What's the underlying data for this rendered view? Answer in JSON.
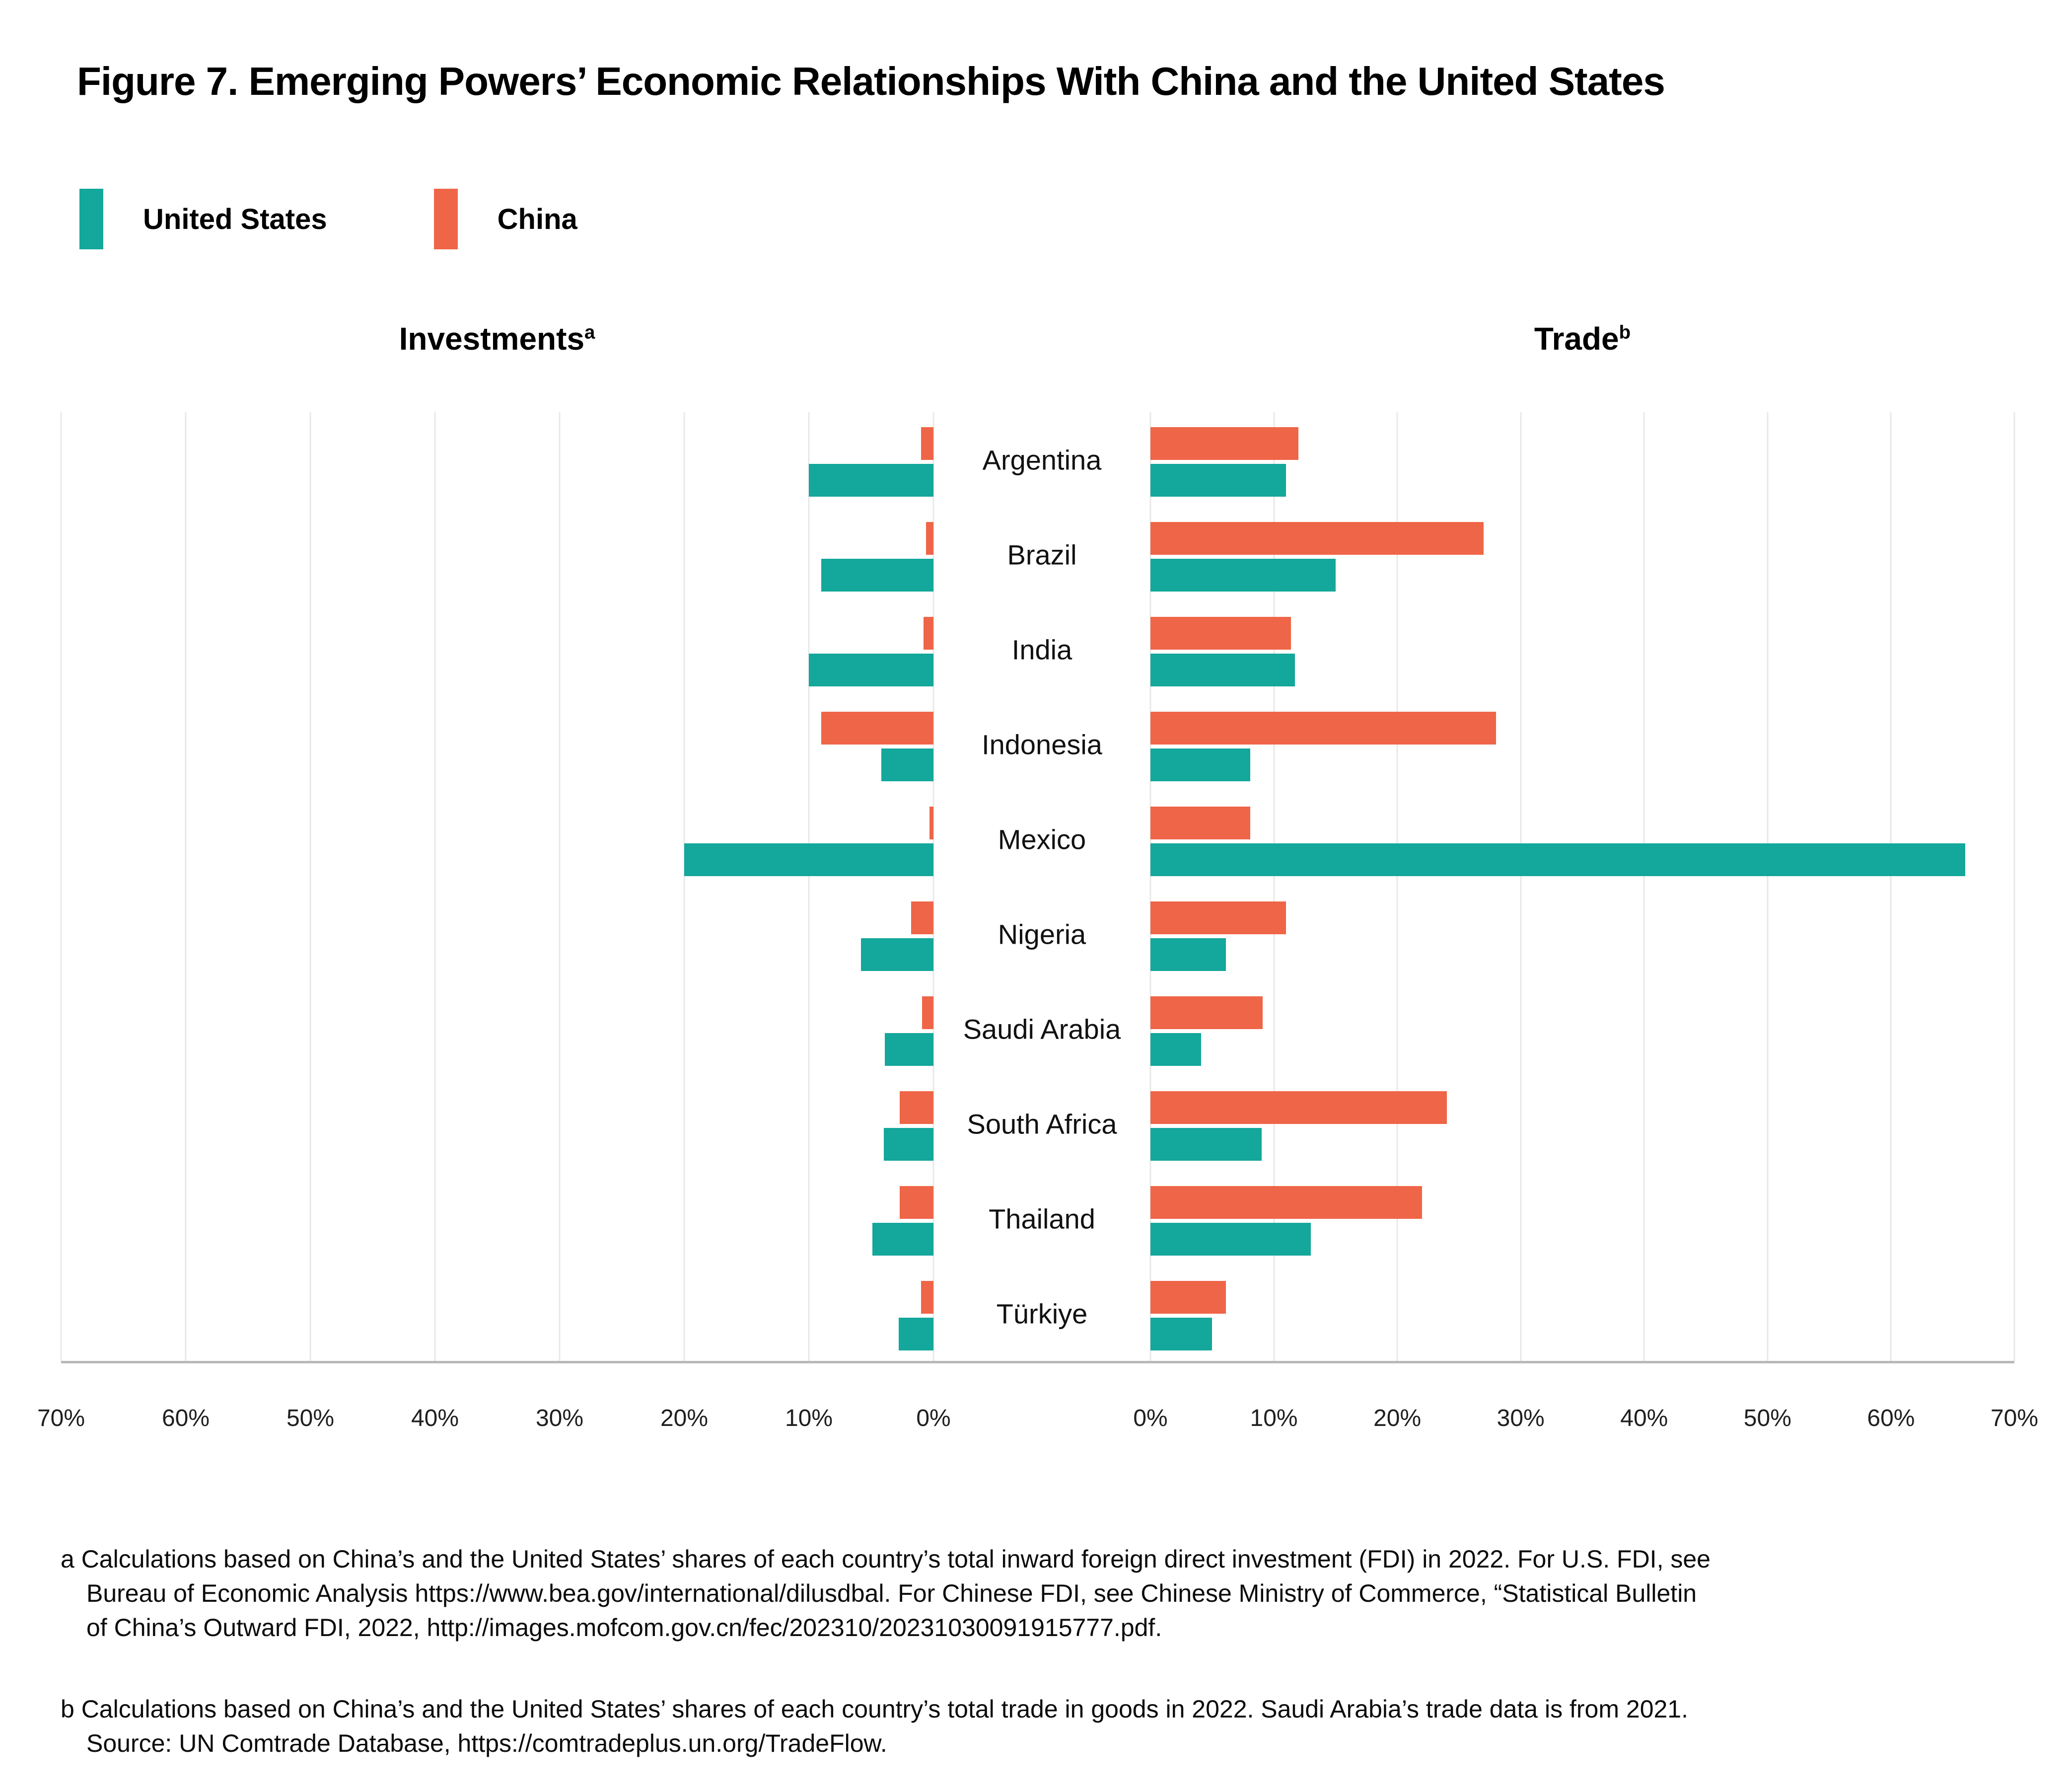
{
  "figure": {
    "title": "Figure 7. Emerging Powers’ Economic Relationships With China and the United States"
  },
  "legend": {
    "items": [
      {
        "label": "United States",
        "color": "#14a79b"
      },
      {
        "label": "China",
        "color": "#ef6547"
      }
    ]
  },
  "chart_data": {
    "type": "bar",
    "orientation": "horizontal",
    "layout": "mirrored-butterfly",
    "grid": true,
    "legend_position": "top-left",
    "categories": [
      "Argentina",
      "Brazil",
      "India",
      "Indonesia",
      "Mexico",
      "Nigeria",
      "Saudi Arabia",
      "South Africa",
      "Thailand",
      "Türkiye"
    ],
    "series_colors": {
      "United States": "#14a79b",
      "China": "#ef6547"
    },
    "panels": [
      {
        "id": "investments",
        "title": "Investments",
        "footnote_marker": "a",
        "side": "left",
        "axis_direction": "right-to-left",
        "xlim": [
          0,
          70
        ],
        "ticks": [
          "70%",
          "60%",
          "50%",
          "40%",
          "30%",
          "20%",
          "10%",
          "0%"
        ],
        "unit": "% share of total inward FDI, 2022",
        "series": [
          {
            "name": "China",
            "values": [
              1.0,
              0.6,
              0.8,
              9.0,
              0.3,
              1.8,
              0.9,
              2.7,
              2.7,
              1.0
            ]
          },
          {
            "name": "United States",
            "values": [
              10.0,
              9.0,
              10.0,
              4.2,
              20.0,
              5.8,
              3.9,
              4.0,
              4.9,
              2.8
            ]
          }
        ]
      },
      {
        "id": "trade",
        "title": "Trade",
        "footnote_marker": "b",
        "side": "right",
        "axis_direction": "left-to-right",
        "xlim": [
          0,
          70
        ],
        "ticks": [
          "0%",
          "10%",
          "20%",
          "30%",
          "40%",
          "50%",
          "60%",
          "70%"
        ],
        "unit": "% share of total trade in goods, 2022",
        "series": [
          {
            "name": "China",
            "values": [
              12.0,
              27.0,
              11.4,
              28.0,
              8.1,
              11.0,
              9.1,
              24.0,
              22.0,
              6.1
            ]
          },
          {
            "name": "United States",
            "values": [
              11.0,
              15.0,
              11.7,
              8.1,
              66.0,
              6.1,
              4.1,
              9.0,
              13.0,
              5.0
            ]
          }
        ]
      }
    ]
  },
  "footnotes": [
    {
      "marker": "a",
      "lines": [
        "a Calculations based on China’s and the United States’ shares of each country’s total inward foreign direct investment (FDI) in 2022. For U.S. FDI, see",
        "Bureau of Economic Analysis https://www.bea.gov/international/dilusdbal. For Chinese FDI, see Chinese Ministry of Commerce, “Statistical Bulletin",
        "of China’s Outward FDI, 2022, http://images.mofcom.gov.cn/fec/202310/20231030091915777.pdf."
      ]
    },
    {
      "marker": "b",
      "lines": [
        "b Calculations based on China’s and the United States’ shares of each country’s total trade in goods in 2022. Saudi Arabia’s trade data is from 2021.",
        "Source: UN Comtrade Database, https://comtradeplus.un.org/TradeFlow."
      ]
    }
  ]
}
